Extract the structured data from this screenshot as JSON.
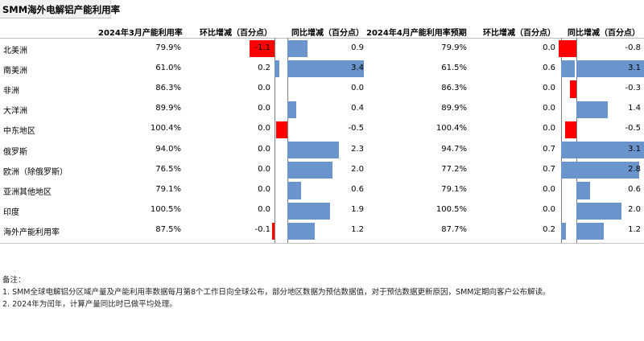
{
  "title": "SMM海外电解铝产能利用率",
  "colors": {
    "negative": "#ff0000",
    "positive": "#6a95cc",
    "axis": "#7f7f7f"
  },
  "chart_data": {
    "type": "table",
    "headers": [
      "2024年3月产能利用率",
      "环比增减（百分点）",
      "同比增减（百分点）",
      "2024年4月产能利用率预期",
      "环比增减（百分点）",
      "同比增减（百分点）"
    ],
    "rows": [
      {
        "region": "北美洲",
        "mar_util": "79.9%",
        "mar_mom": -1.1,
        "mar_mom_label": "-1.1",
        "mar_yoy": 0.9,
        "mar_yoy_label": "0.9",
        "apr_util": "79.9%",
        "apr_mom": 0.0,
        "apr_mom_label": "0.0",
        "apr_yoy": -0.8,
        "apr_yoy_label": "-0.8"
      },
      {
        "region": "南美洲",
        "mar_util": "61.0%",
        "mar_mom": 0.2,
        "mar_mom_label": "0.2",
        "mar_yoy": 3.4,
        "mar_yoy_label": "3.4",
        "apr_util": "61.5%",
        "apr_mom": 0.6,
        "apr_mom_label": "0.6",
        "apr_yoy": 3.1,
        "apr_yoy_label": "3.1"
      },
      {
        "region": "非洲",
        "mar_util": "86.3%",
        "mar_mom": 0.0,
        "mar_mom_label": "0.0",
        "mar_yoy": 0.0,
        "mar_yoy_label": "0.0",
        "apr_util": "86.3%",
        "apr_mom": 0.0,
        "apr_mom_label": "0.0",
        "apr_yoy": -0.3,
        "apr_yoy_label": "-0.3"
      },
      {
        "region": "大洋洲",
        "mar_util": "89.9%",
        "mar_mom": 0.0,
        "mar_mom_label": "0.0",
        "mar_yoy": 0.4,
        "mar_yoy_label": "0.4",
        "apr_util": "89.9%",
        "apr_mom": 0.0,
        "apr_mom_label": "0.0",
        "apr_yoy": 1.4,
        "apr_yoy_label": "1.4"
      },
      {
        "region": "中东地区",
        "mar_util": "100.4%",
        "mar_mom": 0.0,
        "mar_mom_label": "0.0",
        "mar_yoy": -0.5,
        "mar_yoy_label": "-0.5",
        "apr_util": "100.4%",
        "apr_mom": 0.0,
        "apr_mom_label": "0.0",
        "apr_yoy": -0.5,
        "apr_yoy_label": "-0.5"
      },
      {
        "region": "俄罗斯",
        "mar_util": "94.0%",
        "mar_mom": 0.0,
        "mar_mom_label": "0.0",
        "mar_yoy": 2.3,
        "mar_yoy_label": "2.3",
        "apr_util": "94.7%",
        "apr_mom": 0.7,
        "apr_mom_label": "0.7",
        "apr_yoy": 3.1,
        "apr_yoy_label": "3.1"
      },
      {
        "region": "欧洲（除俄罗斯）",
        "mar_util": "76.5%",
        "mar_mom": 0.0,
        "mar_mom_label": "0.0",
        "mar_yoy": 2.0,
        "mar_yoy_label": "2.0",
        "apr_util": "77.2%",
        "apr_mom": 0.7,
        "apr_mom_label": "0.7",
        "apr_yoy": 2.8,
        "apr_yoy_label": "2.8"
      },
      {
        "region": "亚洲其他地区",
        "mar_util": "79.1%",
        "mar_mom": 0.0,
        "mar_mom_label": "0.0",
        "mar_yoy": 0.6,
        "mar_yoy_label": "0.6",
        "apr_util": "79.1%",
        "apr_mom": 0.0,
        "apr_mom_label": "0.0",
        "apr_yoy": 0.6,
        "apr_yoy_label": "0.6"
      },
      {
        "region": "印度",
        "mar_util": "100.5%",
        "mar_mom": 0.0,
        "mar_mom_label": "0.0",
        "mar_yoy": 1.9,
        "mar_yoy_label": "1.9",
        "apr_util": "100.5%",
        "apr_mom": 0.0,
        "apr_mom_label": "0.0",
        "apr_yoy": 2.0,
        "apr_yoy_label": "2.0"
      },
      {
        "region": "海外产能利用率",
        "mar_util": "87.5%",
        "mar_mom": -0.1,
        "mar_mom_label": "-0.1",
        "mar_yoy": 1.2,
        "mar_yoy_label": "1.2",
        "apr_util": "87.7%",
        "apr_mom": 0.2,
        "apr_mom_label": "0.2",
        "apr_yoy": 1.2,
        "apr_yoy_label": "1.2"
      }
    ]
  },
  "notes": [
    "备注：",
    "1. SMM全球电解铝分区域产量及产能利用率数据每月第8个工作日向全球公布，部分地区数据为预估数据值，对于预估数据更新原因，SMM定期向客户公布解读。",
    "2. 2024年为闰年，计算产量同比时已做平均处理。"
  ]
}
